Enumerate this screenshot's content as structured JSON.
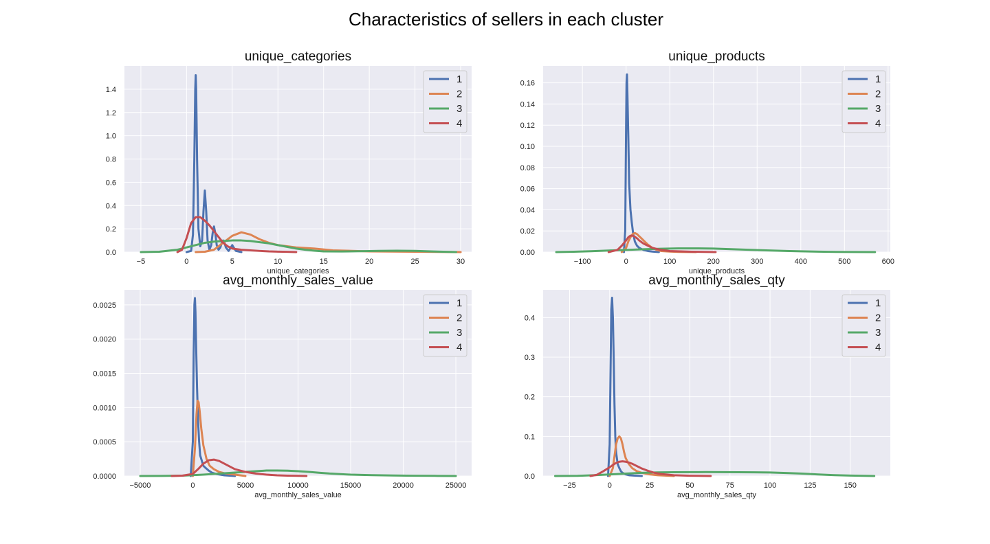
{
  "figure": {
    "title": "Characteristics of sellers in each cluster",
    "legend_labels": [
      "1",
      "2",
      "3",
      "4"
    ],
    "colors": {
      "1": "#4c72b0",
      "2": "#dd8452",
      "3": "#55a868",
      "4": "#c44e52",
      "background": "#eaeaf2",
      "grid": "#ffffff"
    }
  },
  "chart_data": [
    {
      "type": "line",
      "title": "unique_categories",
      "xlabel": "unique_categories",
      "ylabel": "",
      "xlim": [
        -6.8,
        31.2
      ],
      "ylim": [
        0,
        1.6
      ],
      "xticks": [
        -5,
        0,
        5,
        10,
        15,
        20,
        25,
        30
      ],
      "yticks": [
        0.0,
        0.2,
        0.4,
        0.6,
        0.8,
        1.0,
        1.2,
        1.4
      ],
      "ytick_decimals": 1,
      "grid": true,
      "legend": "top-right",
      "series": [
        {
          "name": "1",
          "x": [
            0,
            0.5,
            0.7,
            0.85,
            0.95,
            1.0,
            1.05,
            1.15,
            1.3,
            1.5,
            1.7,
            1.85,
            2.0,
            2.15,
            2.3,
            2.5,
            2.7,
            2.85,
            3.0,
            3.15,
            3.3,
            3.5,
            3.7,
            3.85,
            4.0,
            4.15,
            4.3,
            4.6,
            4.85,
            5.0,
            5.15,
            5.4,
            5.7,
            6.0
          ],
          "y": [
            0,
            0.01,
            0.15,
            0.8,
            1.4,
            1.52,
            1.4,
            0.8,
            0.2,
            0.05,
            0.1,
            0.35,
            0.53,
            0.35,
            0.1,
            0.02,
            0.06,
            0.16,
            0.22,
            0.16,
            0.06,
            0.02,
            0.04,
            0.08,
            0.1,
            0.08,
            0.04,
            0.01,
            0.04,
            0.06,
            0.04,
            0.01,
            0.005,
            0
          ]
        },
        {
          "name": "2",
          "x": [
            1,
            2,
            3,
            3.5,
            4,
            5,
            6,
            7,
            8,
            9,
            10,
            11,
            12,
            14,
            16,
            20,
            25,
            30
          ],
          "y": [
            0,
            0.003,
            0.02,
            0.05,
            0.08,
            0.14,
            0.17,
            0.15,
            0.11,
            0.08,
            0.06,
            0.05,
            0.04,
            0.03,
            0.015,
            0.006,
            0.003,
            0
          ]
        },
        {
          "name": "3",
          "x": [
            -5,
            -3,
            -1,
            0,
            1,
            2,
            3,
            4,
            5,
            6,
            7,
            8,
            9,
            10,
            11,
            12,
            13,
            14,
            15,
            17,
            19,
            21,
            23,
            25,
            27,
            29.5
          ],
          "y": [
            0,
            0.003,
            0.02,
            0.04,
            0.06,
            0.08,
            0.09,
            0.095,
            0.1,
            0.1,
            0.095,
            0.085,
            0.075,
            0.06,
            0.045,
            0.03,
            0.02,
            0.012,
            0.006,
            0.005,
            0.007,
            0.01,
            0.012,
            0.01,
            0.005,
            0
          ]
        },
        {
          "name": "4",
          "x": [
            -1,
            -0.5,
            0,
            0.5,
            1,
            1.5,
            2,
            2.5,
            3,
            3.5,
            4,
            4.5,
            5,
            6,
            7,
            8,
            9,
            10,
            11,
            12
          ],
          "y": [
            0,
            0.02,
            0.12,
            0.25,
            0.3,
            0.3,
            0.27,
            0.23,
            0.18,
            0.13,
            0.08,
            0.05,
            0.03,
            0.02,
            0.015,
            0.01,
            0.006,
            0.004,
            0.002,
            0
          ]
        }
      ]
    },
    {
      "type": "line",
      "title": "unique_products",
      "xlabel": "unique_products",
      "ylabel": "",
      "xlim": [
        -190,
        605
      ],
      "ylim": [
        0,
        0.176
      ],
      "xticks": [
        -100,
        0,
        100,
        200,
        300,
        400,
        500,
        600
      ],
      "yticks": [
        0.0,
        0.02,
        0.04,
        0.06,
        0.08,
        0.1,
        0.12,
        0.14,
        0.16
      ],
      "ytick_decimals": 2,
      "grid": true,
      "legend": "top-right",
      "series": [
        {
          "name": "1",
          "x": [
            -5,
            -2,
            0,
            1,
            2,
            3,
            5,
            7,
            10,
            13,
            16,
            20,
            25,
            30,
            40,
            50,
            60,
            75
          ],
          "y": [
            0,
            0.02,
            0.12,
            0.16,
            0.168,
            0.15,
            0.11,
            0.065,
            0.04,
            0.028,
            0.018,
            0.01,
            0.006,
            0.004,
            0.002,
            0.001,
            0.0005,
            0
          ]
        },
        {
          "name": "2",
          "x": [
            -10,
            0,
            5,
            10,
            15,
            20,
            25,
            30,
            35,
            40,
            45,
            50,
            60,
            70,
            80,
            100,
            120,
            160
          ],
          "y": [
            0,
            0.004,
            0.01,
            0.014,
            0.017,
            0.018,
            0.017,
            0.015,
            0.013,
            0.011,
            0.009,
            0.007,
            0.004,
            0.002,
            0.001,
            0.0005,
            0.0002,
            0
          ]
        },
        {
          "name": "3",
          "x": [
            -160,
            -120,
            -80,
            -40,
            0,
            40,
            80,
            120,
            160,
            200,
            240,
            280,
            320,
            360,
            400,
            440,
            480,
            520,
            570
          ],
          "y": [
            0,
            0.0003,
            0.0008,
            0.0015,
            0.002,
            0.0027,
            0.0032,
            0.0035,
            0.0035,
            0.0033,
            0.0028,
            0.0022,
            0.0016,
            0.0011,
            0.0007,
            0.0004,
            0.0002,
            0.0001,
            0
          ]
        },
        {
          "name": "4",
          "x": [
            -40,
            -20,
            -10,
            0,
            5,
            10,
            15,
            20,
            25,
            30,
            35,
            40,
            50,
            60,
            80,
            100,
            150,
            205
          ],
          "y": [
            0,
            0.002,
            0.006,
            0.011,
            0.014,
            0.0155,
            0.0155,
            0.0145,
            0.013,
            0.011,
            0.0095,
            0.008,
            0.006,
            0.004,
            0.002,
            0.001,
            0.0003,
            0
          ]
        }
      ]
    },
    {
      "type": "line",
      "title": "avg_monthly_sales_value",
      "xlabel": "avg_monthly_sales_value",
      "ylabel": "",
      "xlim": [
        -6500,
        26500
      ],
      "ylim": [
        0,
        0.00272
      ],
      "xticks": [
        -5000,
        0,
        5000,
        10000,
        15000,
        20000,
        25000
      ],
      "yticks": [
        0.0,
        0.0005,
        0.001,
        0.0015,
        0.002,
        0.0025
      ],
      "ytick_decimals": 4,
      "grid": true,
      "legend": "top-right",
      "series": [
        {
          "name": "1",
          "x": [
            -200,
            0,
            80,
            150,
            200,
            250,
            300,
            400,
            500,
            600,
            700,
            800,
            1000,
            1200,
            1500,
            1800,
            2200,
            2600,
            3000,
            3500,
            4000
          ],
          "y": [
            0,
            0.0005,
            0.0018,
            0.0025,
            0.0026,
            0.0024,
            0.002,
            0.0013,
            0.0008,
            0.0005,
            0.0003,
            0.00025,
            0.00015,
            0.00012,
            8e-05,
            5e-05,
            3e-05,
            2e-05,
            1e-05,
            5e-06,
            0
          ]
        },
        {
          "name": "2",
          "x": [
            0,
            200,
            350,
            450,
            550,
            650,
            800,
            1000,
            1300,
            1600,
            2000,
            2500,
            3000,
            3500,
            4000,
            4500,
            5000
          ],
          "y": [
            0,
            0.0004,
            0.0009,
            0.0011,
            0.00108,
            0.00095,
            0.0007,
            0.00045,
            0.00025,
            0.00015,
            0.0001,
            6e-05,
            4e-05,
            3e-05,
            2e-05,
            1e-05,
            0
          ]
        },
        {
          "name": "3",
          "x": [
            -5000,
            -3000,
            -1000,
            0,
            1000,
            2000,
            3000,
            4000,
            5000,
            6000,
            7000,
            8000,
            9000,
            10000,
            11000,
            12000,
            13000,
            14000,
            15000,
            17000,
            19000,
            21000,
            23000,
            25000
          ],
          "y": [
            0,
            1e-06,
            5e-06,
            1.2e-05,
            2e-05,
            3e-05,
            4e-05,
            5e-05,
            6e-05,
            7e-05,
            8e-05,
            8e-05,
            7.8e-05,
            7e-05,
            6e-05,
            4.8e-05,
            3.6e-05,
            2.8e-05,
            2e-05,
            1.2e-05,
            7e-06,
            4e-06,
            2e-06,
            0
          ]
        },
        {
          "name": "4",
          "x": [
            -2000,
            -1000,
            0,
            500,
            1000,
            1500,
            2000,
            2500,
            3000,
            3500,
            4000,
            5000,
            6000,
            7000,
            8000,
            9000,
            10000,
            10800
          ],
          "y": [
            0,
            5e-06,
            3e-05,
            0.0001,
            0.00018,
            0.00023,
            0.00024,
            0.00022,
            0.00018,
            0.00014,
            0.0001,
            6e-05,
            3.5e-05,
            2e-05,
            1e-05,
            5e-06,
            2e-06,
            0
          ]
        }
      ]
    },
    {
      "type": "line",
      "title": "avg_monthly_sales_qty",
      "xlabel": "avg_monthly_sales_qty",
      "ylabel": "",
      "xlim": [
        -41.5,
        175
      ],
      "ylim": [
        0,
        0.47
      ],
      "xticks": [
        -25,
        0,
        25,
        50,
        75,
        100,
        125,
        150
      ],
      "yticks": [
        0.0,
        0.1,
        0.2,
        0.3,
        0.4
      ],
      "ytick_decimals": 1,
      "grid": true,
      "legend": "top-right",
      "series": [
        {
          "name": "1",
          "x": [
            -1,
            0,
            0.5,
            1,
            1.5,
            2,
            2.5,
            3,
            3.5,
            4,
            5,
            6,
            7,
            8,
            10,
            12,
            15,
            20
          ],
          "y": [
            0,
            0.08,
            0.25,
            0.42,
            0.45,
            0.4,
            0.3,
            0.18,
            0.1,
            0.06,
            0.03,
            0.02,
            0.012,
            0.008,
            0.004,
            0.002,
            0.001,
            0
          ]
        },
        {
          "name": "2",
          "x": [
            0,
            2,
            3,
            4,
            5,
            6,
            7,
            8,
            9,
            10,
            12,
            14,
            17,
            20,
            25,
            30,
            40
          ],
          "y": [
            0,
            0.02,
            0.05,
            0.08,
            0.095,
            0.1,
            0.095,
            0.08,
            0.06,
            0.045,
            0.03,
            0.02,
            0.012,
            0.008,
            0.004,
            0.002,
            0
          ]
        },
        {
          "name": "3",
          "x": [
            -34,
            -20,
            -10,
            0,
            10,
            20,
            30,
            40,
            50,
            60,
            70,
            80,
            90,
            100,
            110,
            120,
            130,
            140,
            150,
            165
          ],
          "y": [
            0,
            0.0005,
            0.002,
            0.004,
            0.006,
            0.008,
            0.009,
            0.0095,
            0.0098,
            0.0099,
            0.0098,
            0.0096,
            0.0093,
            0.0088,
            0.0075,
            0.006,
            0.004,
            0.0022,
            0.001,
            0
          ]
        },
        {
          "name": "4",
          "x": [
            -12,
            -8,
            -4,
            0,
            2,
            4,
            6,
            8,
            10,
            12,
            14,
            16,
            18,
            20,
            24,
            28,
            32,
            40,
            50,
            63
          ],
          "y": [
            0,
            0.003,
            0.012,
            0.022,
            0.028,
            0.033,
            0.036,
            0.037,
            0.036,
            0.034,
            0.031,
            0.027,
            0.023,
            0.019,
            0.013,
            0.008,
            0.005,
            0.002,
            0.0007,
            0
          ]
        }
      ]
    }
  ]
}
